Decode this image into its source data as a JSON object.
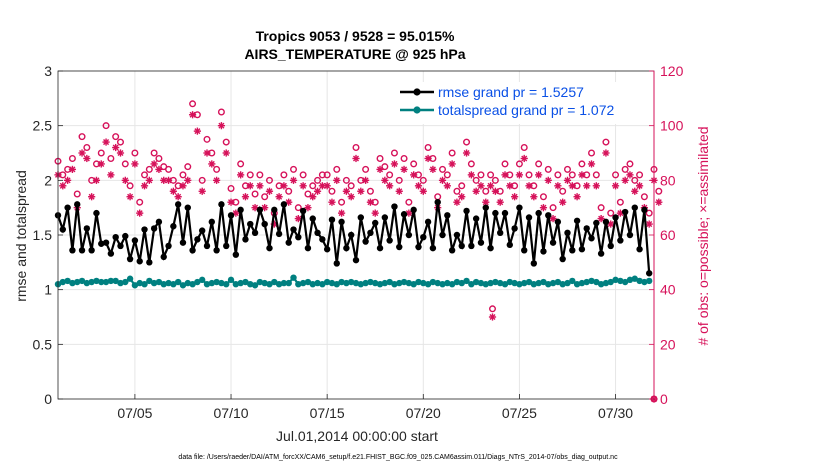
{
  "chart_data": {
    "type": "line",
    "title": "Tropics 9053 / 9528 = 95.015%",
    "subtitle": "AIRS_TEMPERATURE @ 925 hPa",
    "xlabel": "Jul.01,2014 00:00:00 start",
    "ylabel_left": "rmse and totalspread",
    "ylabel_right": "# of obs: o=possible; ×=assimilated",
    "xlim": [
      1,
      32
    ],
    "ylim_left": [
      0,
      3
    ],
    "ylim_right": [
      0,
      120
    ],
    "x_ticks": [
      5,
      10,
      15,
      20,
      25,
      30
    ],
    "x_tick_labels": [
      "07/05",
      "07/10",
      "07/15",
      "07/20",
      "07/25",
      "07/30"
    ],
    "y_ticks_left": [
      0,
      0.5,
      1,
      1.5,
      2,
      2.5,
      3
    ],
    "y_tick_labels_left": [
      "0",
      "0.5",
      "1",
      "1.5",
      "2",
      "2.5",
      "3"
    ],
    "y_ticks_right": [
      0,
      20,
      40,
      60,
      80,
      100,
      120
    ],
    "y_tick_labels_right": [
      "0",
      "20",
      "40",
      "60",
      "80",
      "100",
      "120"
    ],
    "grid": true,
    "legend_position": "top-right",
    "time_step_days": 0.25,
    "series": [
      {
        "name": "rmse grand pr = 1.5257",
        "axis": "left",
        "color": "#000000",
        "marker": "dot",
        "values": [
          1.68,
          1.55,
          1.75,
          1.36,
          1.78,
          1.36,
          1.56,
          1.36,
          1.7,
          1.42,
          1.43,
          1.33,
          1.48,
          1.4,
          1.49,
          1.28,
          1.45,
          1.26,
          1.55,
          1.25,
          1.56,
          1.62,
          1.3,
          1.4,
          1.58,
          1.78,
          1.43,
          1.75,
          1.36,
          1.46,
          1.54,
          1.4,
          1.62,
          1.36,
          1.78,
          1.4,
          1.68,
          1.32,
          1.73,
          1.46,
          1.6,
          1.52,
          1.73,
          1.6,
          1.38,
          1.73,
          1.51,
          1.78,
          1.43,
          1.55,
          1.48,
          1.72,
          1.38,
          1.65,
          1.52,
          1.46,
          1.37,
          1.64,
          1.24,
          1.62,
          1.38,
          1.5,
          1.27,
          1.66,
          1.44,
          1.52,
          1.61,
          1.38,
          1.66,
          1.45,
          1.76,
          1.39,
          1.69,
          1.5,
          1.73,
          1.39,
          1.48,
          1.62,
          1.38,
          1.8,
          1.5,
          1.68,
          1.36,
          1.5,
          1.4,
          1.72,
          1.4,
          1.65,
          1.43,
          1.75,
          1.38,
          1.7,
          1.52,
          1.7,
          1.41,
          1.56,
          1.75,
          1.36,
          1.66,
          1.24,
          1.7,
          1.35,
          1.68,
          1.43,
          1.62,
          1.28,
          1.52,
          1.36,
          1.63,
          1.37,
          1.56,
          1.47,
          1.61,
          1.33,
          1.62,
          1.4,
          1.66,
          1.45,
          1.71,
          1.5,
          1.75,
          1.37,
          1.73,
          1.15
        ]
      },
      {
        "name": "totalspread grand pr = 1.072",
        "axis": "left",
        "color": "#008080",
        "marker": "dot",
        "values": [
          1.05,
          1.07,
          1.08,
          1.06,
          1.07,
          1.08,
          1.06,
          1.07,
          1.08,
          1.07,
          1.07,
          1.08,
          1.08,
          1.06,
          1.07,
          1.1,
          1.04,
          1.06,
          1.05,
          1.08,
          1.06,
          1.07,
          1.05,
          1.06,
          1.05,
          1.07,
          1.04,
          1.06,
          1.05,
          1.07,
          1.09,
          1.05,
          1.06,
          1.07,
          1.06,
          1.05,
          1.09,
          1.05,
          1.06,
          1.07,
          1.05,
          1.04,
          1.07,
          1.06,
          1.05,
          1.07,
          1.05,
          1.06,
          1.06,
          1.11,
          1.05,
          1.06,
          1.07,
          1.05,
          1.06,
          1.05,
          1.07,
          1.06,
          1.05,
          1.07,
          1.06,
          1.07,
          1.06,
          1.05,
          1.06,
          1.07,
          1.06,
          1.05,
          1.06,
          1.07,
          1.05,
          1.06,
          1.07,
          1.06,
          1.05,
          1.07,
          1.06,
          1.05,
          1.07,
          1.06,
          1.05,
          1.06,
          1.05,
          1.07,
          1.06,
          1.08,
          1.05,
          1.07,
          1.06,
          1.05,
          1.06,
          1.07,
          1.06,
          1.05,
          1.07,
          1.06,
          1.05,
          1.06,
          1.07,
          1.05,
          1.06,
          1.07,
          1.05,
          1.06,
          1.07,
          1.05,
          1.06,
          1.08,
          1.05,
          1.06,
          1.07,
          1.08,
          1.07,
          1.05,
          1.06,
          1.07,
          1.09,
          1.08,
          1.07,
          1.09,
          1.1,
          1.08,
          1.07,
          1.08
        ]
      },
      {
        "name": "obs possible",
        "axis": "right",
        "color": "#d6125a",
        "marker": "circle",
        "values": [
          87,
          82,
          84,
          88,
          75,
          96,
          92,
          80,
          86,
          90,
          100,
          88,
          96,
          94,
          86,
          78,
          90,
          72,
          82,
          84,
          90,
          88,
          85,
          84,
          80,
          78,
          82,
          85,
          108,
          104,
          80,
          95,
          90,
          84,
          105,
          94,
          77,
          72,
          86,
          78,
          82,
          75,
          82,
          74,
          80,
          68,
          78,
          82,
          76,
          84,
          70,
          82,
          75,
          78,
          80,
          82,
          82,
          76,
          84,
          72,
          80,
          78,
          92,
          80,
          84,
          76,
          72,
          88,
          85,
          82,
          90,
          80,
          88,
          72,
          86,
          82,
          80,
          92,
          88,
          74,
          84,
          82,
          90,
          76,
          78,
          94,
          86,
          80,
          82,
          76,
          82,
          80,
          76,
          86,
          82,
          78,
          86,
          92,
          82,
          78,
          86,
          74,
          84,
          70,
          82,
          76,
          84,
          82,
          78,
          86,
          82,
          90,
          82,
          70,
          94,
          68,
          82,
          72,
          84,
          86,
          80,
          82,
          74,
          68,
          84,
          76
        ]
      },
      {
        "name": "obs assimilated",
        "axis": "right",
        "color": "#d6125a",
        "marker": "asterisk",
        "values": [
          82,
          78,
          80,
          84,
          70,
          90,
          88,
          74,
          80,
          86,
          94,
          82,
          92,
          90,
          80,
          74,
          86,
          68,
          78,
          80,
          86,
          84,
          80,
          80,
          76,
          74,
          78,
          80,
          104,
          98,
          76,
          90,
          86,
          80,
          100,
          90,
          72,
          68,
          82,
          74,
          78,
          70,
          78,
          70,
          76,
          64,
          74,
          78,
          72,
          80,
          66,
          78,
          70,
          74,
          76,
          78,
          78,
          72,
          80,
          68,
          76,
          74,
          88,
          76,
          80,
          72,
          68,
          84,
          80,
          78,
          86,
          76,
          84,
          68,
          82,
          78,
          76,
          88,
          84,
          70,
          80,
          78,
          86,
          72,
          74,
          90,
          82,
          76,
          78,
          72,
          78,
          76,
          72,
          82,
          78,
          74,
          82,
          88,
          78,
          74,
          82,
          70,
          80,
          66,
          78,
          72,
          80,
          78,
          74,
          82,
          78,
          86,
          78,
          66,
          90,
          64,
          78,
          68,
          80,
          82,
          76,
          78,
          70,
          64,
          80,
          72
        ]
      }
    ],
    "outliers": [
      {
        "name": "obs possible",
        "x": 23.6,
        "value": 33,
        "marker": "circle"
      },
      {
        "name": "obs assimilated",
        "x": 23.6,
        "value": 30,
        "marker": "asterisk"
      },
      {
        "name": "obs possible",
        "x": 32,
        "value": 0,
        "marker": "circle"
      },
      {
        "name": "obs assimilated",
        "x": 32,
        "value": 0,
        "marker": "asterisk"
      }
    ],
    "footnote": "data file: /Users/raeder/DAI/ATM_forcXX/CAM6_setup/f.e21.FHIST_BGC.f09_025.CAM6assim.011/Diags_NTrS_2014-07/obs_diag_output.nc"
  }
}
